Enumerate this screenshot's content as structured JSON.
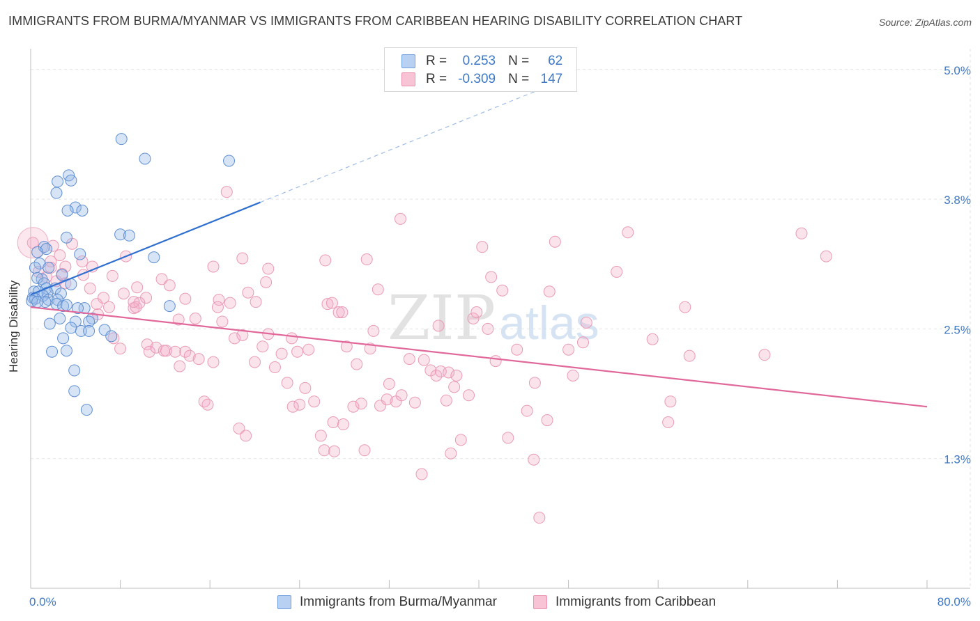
{
  "title": "IMMIGRANTS FROM BURMA/MYANMAR VS IMMIGRANTS FROM CARIBBEAN HEARING DISABILITY CORRELATION CHART",
  "source": "Source: ZipAtlas.com",
  "watermark": {
    "zip": "ZIP",
    "atlas": "atlas"
  },
  "legend": {
    "r_label": "R =",
    "n_label": "N =",
    "rows": [
      {
        "name": "Immigrants from Burma/Myanmar",
        "r": "0.253",
        "n": "62",
        "fill": "#b8d1f2",
        "stroke": "#6f9fdc"
      },
      {
        "name": "Immigrants from Caribbean",
        "r": "-0.309",
        "n": "147",
        "fill": "#f8c4d5",
        "stroke": "#e990ae"
      }
    ]
  },
  "chart_data": {
    "type": "scatter",
    "title": "IMMIGRANTS FROM BURMA/MYANMAR VS IMMIGRANTS FROM CARIBBEAN HEARING DISABILITY CORRELATION CHART",
    "xlabel": "",
    "ylabel": "Hearing Disability",
    "xlim": [
      0,
      80
    ],
    "ylim": [
      0,
      5.2
    ],
    "x_tick_labels": [
      "0.0%",
      "80.0%"
    ],
    "y_ticks": [
      {
        "value": 1.25,
        "label": "1.3%"
      },
      {
        "value": 2.5,
        "label": "2.5%"
      },
      {
        "value": 3.75,
        "label": "3.8%"
      },
      {
        "value": 5.0,
        "label": "5.0%"
      }
    ],
    "grid": true,
    "colors": {
      "blue": "#3f79c6",
      "pink": "#e0679a",
      "blue_line": "#2f6fd0",
      "pink_line": "#e0689a"
    },
    "series": [
      {
        "name": "Immigrants from Burma/Myanmar",
        "color": "#3f79c6",
        "trend": {
          "x0": 0,
          "y0": 2.83,
          "x1": 20.5,
          "y1": 3.72,
          "dashed_to_x": 48.5,
          "dashed_to_y": 4.94
        },
        "points": [
          [
            8.1,
            4.33
          ],
          [
            10.2,
            4.14
          ],
          [
            17.7,
            4.12
          ],
          [
            3.4,
            3.98
          ],
          [
            2.4,
            3.92
          ],
          [
            3.6,
            3.93
          ],
          [
            2.3,
            3.81
          ],
          [
            4.0,
            3.67
          ],
          [
            3.3,
            3.64
          ],
          [
            4.6,
            3.64
          ],
          [
            3.2,
            3.38
          ],
          [
            8.0,
            3.41
          ],
          [
            8.8,
            3.4
          ],
          [
            1.2,
            3.29
          ],
          [
            1.4,
            3.27
          ],
          [
            0.6,
            3.24
          ],
          [
            4.4,
            3.22
          ],
          [
            11.0,
            3.19
          ],
          [
            0.8,
            3.13
          ],
          [
            1.6,
            3.09
          ],
          [
            0.4,
            3.09
          ],
          [
            2.8,
            3.02
          ],
          [
            1.0,
            2.98
          ],
          [
            0.6,
            2.99
          ],
          [
            1.2,
            2.94
          ],
          [
            3.6,
            2.93
          ],
          [
            1.4,
            2.89
          ],
          [
            2.2,
            2.89
          ],
          [
            0.3,
            2.86
          ],
          [
            0.7,
            2.86
          ],
          [
            1.5,
            2.85
          ],
          [
            2.7,
            2.84
          ],
          [
            1.1,
            2.82
          ],
          [
            0.2,
            2.8
          ],
          [
            0.4,
            2.79
          ],
          [
            1.6,
            2.78
          ],
          [
            2.4,
            2.78
          ],
          [
            0.1,
            2.77
          ],
          [
            1.3,
            2.76
          ],
          [
            0.6,
            2.76
          ],
          [
            2.3,
            2.74
          ],
          [
            2.9,
            2.72
          ],
          [
            12.4,
            2.72
          ],
          [
            4.8,
            2.7
          ],
          [
            3.2,
            2.73
          ],
          [
            5.5,
            2.6
          ],
          [
            4.0,
            2.57
          ],
          [
            5.2,
            2.57
          ],
          [
            3.6,
            2.51
          ],
          [
            6.6,
            2.49
          ],
          [
            4.5,
            2.48
          ],
          [
            5.2,
            2.48
          ],
          [
            7.2,
            2.43
          ],
          [
            2.9,
            2.41
          ],
          [
            1.9,
            2.28
          ],
          [
            3.2,
            2.29
          ],
          [
            3.9,
            2.1
          ],
          [
            3.9,
            1.9
          ],
          [
            5.0,
            1.72
          ],
          [
            2.6,
            2.6
          ],
          [
            1.7,
            2.55
          ],
          [
            4.2,
            2.7
          ]
        ]
      },
      {
        "name": "Immigrants from Caribbean",
        "color": "#e0679a",
        "trend": {
          "x0": 0,
          "y0": 2.71,
          "x1": 80,
          "y1": 1.75
        },
        "points": [
          [
            0.2,
            3.33
          ],
          [
            1.8,
            3.15
          ],
          [
            2.0,
            3.3
          ],
          [
            2.6,
            3.21
          ],
          [
            3.7,
            3.32
          ],
          [
            4.6,
            3.15
          ],
          [
            5.5,
            3.1
          ],
          [
            0.7,
            3.05
          ],
          [
            1.4,
            3.0
          ],
          [
            2.3,
            2.96
          ],
          [
            1.8,
            3.09
          ],
          [
            3.1,
            3.1
          ],
          [
            4.7,
            3.02
          ],
          [
            5.3,
            2.89
          ],
          [
            7.3,
            3.01
          ],
          [
            8.3,
            2.84
          ],
          [
            9.5,
            2.9
          ],
          [
            10.3,
            2.8
          ],
          [
            11.7,
            2.98
          ],
          [
            12.4,
            2.92
          ],
          [
            13.8,
            2.79
          ],
          [
            14.7,
            2.6
          ],
          [
            16.3,
            3.1
          ],
          [
            16.8,
            2.78
          ],
          [
            17.8,
            2.75
          ],
          [
            18.9,
            3.18
          ],
          [
            19.4,
            2.85
          ],
          [
            20.1,
            2.76
          ],
          [
            21.0,
            2.95
          ],
          [
            21.2,
            3.08
          ],
          [
            17.5,
            3.82
          ],
          [
            8.5,
            3.2
          ],
          [
            7.0,
            2.71
          ],
          [
            6.5,
            2.8
          ],
          [
            6.0,
            2.64
          ],
          [
            7.4,
            2.41
          ],
          [
            8.0,
            2.31
          ],
          [
            9.2,
            2.7
          ],
          [
            9.7,
            2.75
          ],
          [
            10.4,
            2.35
          ],
          [
            10.6,
            2.28
          ],
          [
            11.2,
            2.32
          ],
          [
            11.9,
            2.29
          ],
          [
            12.1,
            2.29
          ],
          [
            12.9,
            2.28
          ],
          [
            13.3,
            2.14
          ],
          [
            13.8,
            2.28
          ],
          [
            14.2,
            2.24
          ],
          [
            15.0,
            2.21
          ],
          [
            15.5,
            1.8
          ],
          [
            15.8,
            1.77
          ],
          [
            16.3,
            2.18
          ],
          [
            17.1,
            2.57
          ],
          [
            18.2,
            2.41
          ],
          [
            18.6,
            1.54
          ],
          [
            19.2,
            1.47
          ],
          [
            20.0,
            2.18
          ],
          [
            20.7,
            2.33
          ],
          [
            21.2,
            2.45
          ],
          [
            21.8,
            2.13
          ],
          [
            22.4,
            2.26
          ],
          [
            22.9,
            1.98
          ],
          [
            23.3,
            2.41
          ],
          [
            23.8,
            2.28
          ],
          [
            24.5,
            1.93
          ],
          [
            24.0,
            1.77
          ],
          [
            23.4,
            1.75
          ],
          [
            24.8,
            2.3
          ],
          [
            25.3,
            1.8
          ],
          [
            25.9,
            1.47
          ],
          [
            26.2,
            1.33
          ],
          [
            27.1,
            1.32
          ],
          [
            26.5,
            2.74
          ],
          [
            26.3,
            3.16
          ],
          [
            27.5,
            2.66
          ],
          [
            27.8,
            2.66
          ],
          [
            27.0,
            1.6
          ],
          [
            27.9,
            1.58
          ],
          [
            28.2,
            2.33
          ],
          [
            28.8,
            1.75
          ],
          [
            29.1,
            2.16
          ],
          [
            29.5,
            1.78
          ],
          [
            29.8,
            1.33
          ],
          [
            30.3,
            2.31
          ],
          [
            30.0,
            3.17
          ],
          [
            30.6,
            2.48
          ],
          [
            31.0,
            2.88
          ],
          [
            31.2,
            1.76
          ],
          [
            31.8,
            1.82
          ],
          [
            32.0,
            1.97
          ],
          [
            32.6,
            1.8
          ],
          [
            33.1,
            1.86
          ],
          [
            33.8,
            2.21
          ],
          [
            33.0,
            3.56
          ],
          [
            34.3,
            1.79
          ],
          [
            34.9,
            1.1
          ],
          [
            35.1,
            2.2
          ],
          [
            35.7,
            2.1
          ],
          [
            36.2,
            2.05
          ],
          [
            36.6,
            2.09
          ],
          [
            37.1,
            1.81
          ],
          [
            37.3,
            2.08
          ],
          [
            37.5,
            1.3
          ],
          [
            37.8,
            1.94
          ],
          [
            38.0,
            2.05
          ],
          [
            38.4,
            1.43
          ],
          [
            39.1,
            1.86
          ],
          [
            39.5,
            2.6
          ],
          [
            39.8,
            2.66
          ],
          [
            40.3,
            3.29
          ],
          [
            40.8,
            2.5
          ],
          [
            41.1,
            3.0
          ],
          [
            41.5,
            2.19
          ],
          [
            42.1,
            2.87
          ],
          [
            42.6,
            1.45
          ],
          [
            43.4,
            2.3
          ],
          [
            44.3,
            1.71
          ],
          [
            44.9,
            1.24
          ],
          [
            45.4,
            0.68
          ],
          [
            46.3,
            2.86
          ],
          [
            46.1,
            1.62
          ],
          [
            46.8,
            3.34
          ],
          [
            48.0,
            2.3
          ],
          [
            48.4,
            2.05
          ],
          [
            49.6,
            2.56
          ],
          [
            49.3,
            2.37
          ],
          [
            52.3,
            3.05
          ],
          [
            53.3,
            3.43
          ],
          [
            55.5,
            2.4
          ],
          [
            56.9,
            1.6
          ],
          [
            57.1,
            1.8
          ],
          [
            58.4,
            2.71
          ],
          [
            58.8,
            2.24
          ],
          [
            65.5,
            2.25
          ],
          [
            68.8,
            3.42
          ],
          [
            71.0,
            3.2
          ],
          [
            2.8,
            3.03
          ],
          [
            9.4,
            2.71
          ],
          [
            16.7,
            2.71
          ],
          [
            26.9,
            2.75
          ],
          [
            36.4,
            2.53
          ],
          [
            45.0,
            1.98
          ],
          [
            9.2,
            2.76
          ],
          [
            3.1,
            2.94
          ],
          [
            5.9,
            2.74
          ],
          [
            18.9,
            2.44
          ],
          [
            13.2,
            2.59
          ]
        ]
      }
    ]
  }
}
